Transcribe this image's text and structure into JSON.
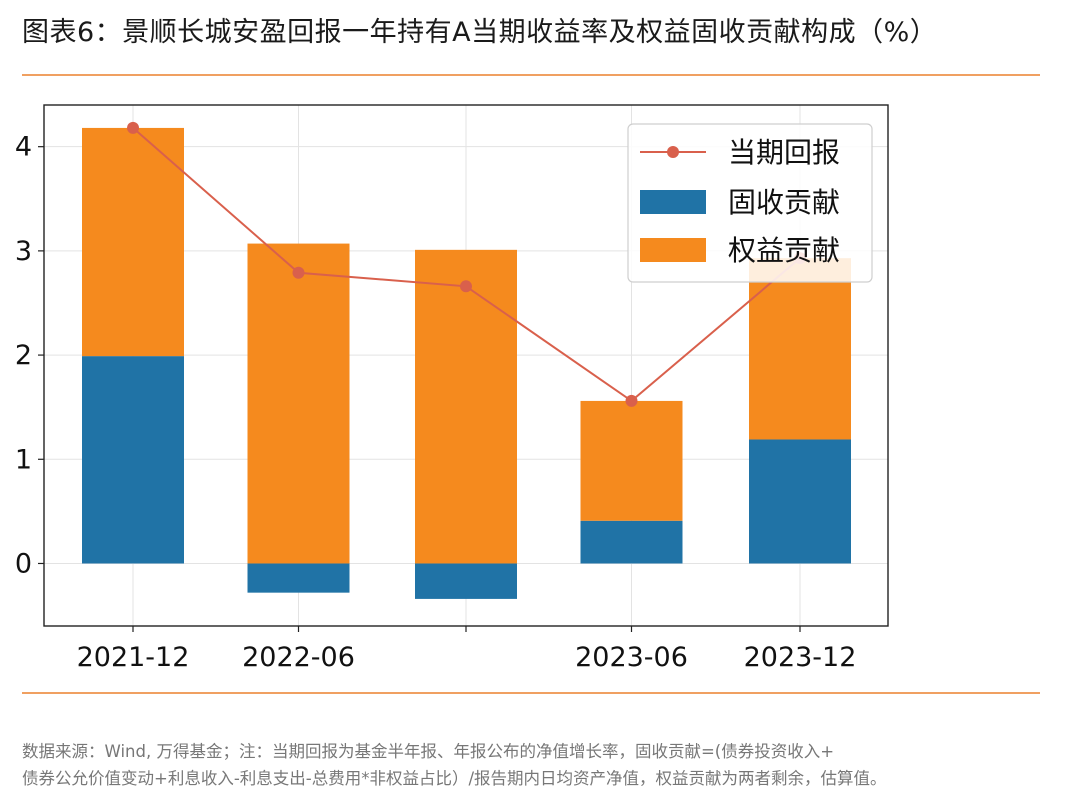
{
  "title": "图表6：景顺长城安盈回报一年持有A当期收益率及权益固收贡献构成（%）",
  "note_line1": "数据来源：Wind, 万得基金；注：当期回报为基金半年报、年报公布的净值增长率，固收贡献=(债券投资收入+",
  "note_line2": "债券公允价值变动+利息收入-利息支出-总费用*非权益占比）/报告期内日均资产净值，权益贡献为两者剩余，估算值。",
  "colors": {
    "line": "#d9604c",
    "fixed": "#2073a6",
    "equity": "#f58a1e",
    "rule": "#f0a061"
  },
  "chart_data": {
    "type": "bar",
    "categories": [
      "2021-12",
      "2022-06",
      "",
      "2023-06",
      "2023-12"
    ],
    "ylim": [
      -0.6,
      4.4
    ],
    "yticks": [
      0,
      1,
      2,
      3,
      4
    ],
    "grid": true,
    "legend_position": "upper-right",
    "series": [
      {
        "name": "当期回报",
        "kind": "line",
        "values": [
          4.18,
          2.79,
          2.66,
          1.56,
          2.93
        ]
      },
      {
        "name": "固收贡献",
        "kind": "bar",
        "values": [
          1.99,
          -0.28,
          -0.34,
          0.41,
          1.19
        ]
      },
      {
        "name": "权益贡献",
        "kind": "bar",
        "values": [
          2.19,
          3.07,
          3.01,
          1.15,
          1.74
        ]
      }
    ]
  }
}
